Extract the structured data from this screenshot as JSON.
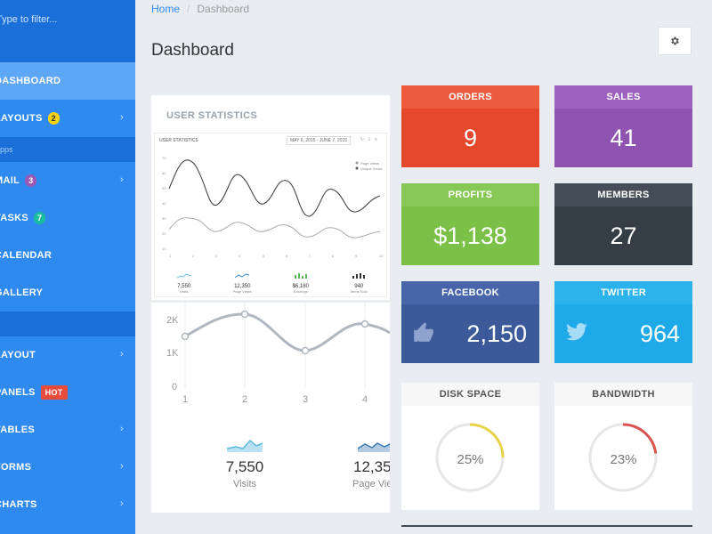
{
  "sidebar": {
    "search_placeholder": "Type to filter...",
    "items": [
      {
        "label": "DASHBOARD"
      },
      {
        "label": "LAYOUTS",
        "badge": "2"
      },
      {
        "section": "Apps"
      },
      {
        "label": "MAIL",
        "badge": "3"
      },
      {
        "label": "TASKS",
        "badge": "7"
      },
      {
        "label": "CALENDAR"
      },
      {
        "label": "GALLERY"
      },
      {
        "label": "LAYOUT"
      },
      {
        "label": "PANELS",
        "badge": "HOT"
      },
      {
        "label": "TABLES"
      },
      {
        "label": "FORMS"
      },
      {
        "label": "CHARTS"
      }
    ]
  },
  "breadcrumb": {
    "home": "Home",
    "sep": "/",
    "current": "Dashboard"
  },
  "page_title": "Dashboard",
  "user_stats": {
    "title": "USER STATISTICS",
    "mini_title": "USER STATISTICS",
    "mini_date": "MAY 6, 2015 - JUNE 7, 2015",
    "mini_legend": [
      "Page Views",
      "Unique Views"
    ],
    "mini_stats": [
      {
        "value": "7,550",
        "label": "Visits"
      },
      {
        "value": "12,350",
        "label": "Page Views"
      },
      {
        "value": "$6,180",
        "label": "Earnings"
      },
      {
        "value": "940",
        "label": "Items Sold"
      }
    ]
  },
  "large_chart": {
    "y_ticks": [
      "2K",
      "1K",
      "0"
    ],
    "x_ticks": [
      "1",
      "2",
      "3",
      "4"
    ],
    "stats": [
      {
        "value": "7,550",
        "label": "Visits"
      },
      {
        "value": "12,35",
        "label": "Page Vie"
      }
    ]
  },
  "tiles": {
    "orders": {
      "title": "ORDERS",
      "value": "9",
      "color": "#ed5a3e"
    },
    "sales": {
      "title": "SALES",
      "value": "41",
      "color": "#8e5cb3"
    },
    "profits": {
      "title": "PROFITS",
      "value": "$1,138",
      "color": "#7cc147"
    },
    "members": {
      "title": "MEMBERS",
      "value": "27",
      "color": "#3b444e"
    },
    "facebook": {
      "title": "FACEBOOK",
      "value": "2,150",
      "color": "#3c5a9a",
      "icon": "thumbs-up-icon"
    },
    "twitter": {
      "title": "TWITTER",
      "value": "964",
      "color": "#1eaae9",
      "icon": "twitter-bird-icon"
    }
  },
  "meters": {
    "disk": {
      "title": "DISK SPACE",
      "value": "25%",
      "fraction": 0.25,
      "color": "#e8d347"
    },
    "bandwidth": {
      "title": "BANDWIDTH",
      "value": "23%",
      "fraction": 0.23,
      "color": "#d9534f"
    }
  }
}
